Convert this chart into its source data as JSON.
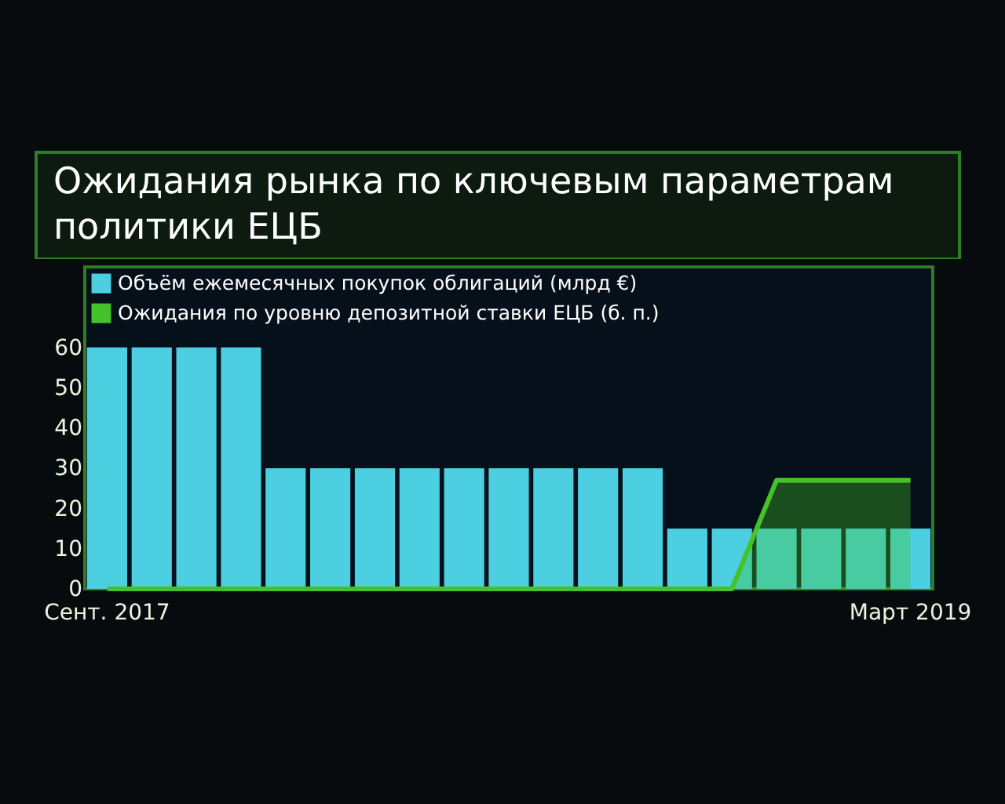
{
  "chart_data": {
    "type": "bar",
    "title": "Ожидания рынка по ключевым параметрам политики ЕЦБ",
    "categories": [
      "Сент. 2017",
      null,
      null,
      null,
      null,
      null,
      null,
      null,
      null,
      null,
      null,
      null,
      null,
      null,
      null,
      null,
      null,
      null,
      "Март 2019"
    ],
    "series": [
      {
        "name": "Объём ежемесячных покупок облигаций (млрд €)",
        "color": "#4ccfe0",
        "values": [
          60,
          60,
          60,
          60,
          30,
          30,
          30,
          30,
          30,
          30,
          30,
          30,
          30,
          15,
          15,
          15,
          15,
          15,
          15
        ]
      },
      {
        "name": "Ожидания по уровню депозитной ставки ЕЦБ (б. п.)",
        "type": "area",
        "color": "#45c22a",
        "values": [
          0,
          0,
          0,
          0,
          0,
          0,
          0,
          0,
          0,
          0,
          0,
          0,
          0,
          0,
          0,
          27,
          27,
          27,
          27
        ]
      }
    ],
    "ylim": [
      0,
      80
    ],
    "yticks": [
      0,
      10,
      20,
      30,
      40,
      50,
      60
    ],
    "grid": false,
    "legend": "top left"
  }
}
